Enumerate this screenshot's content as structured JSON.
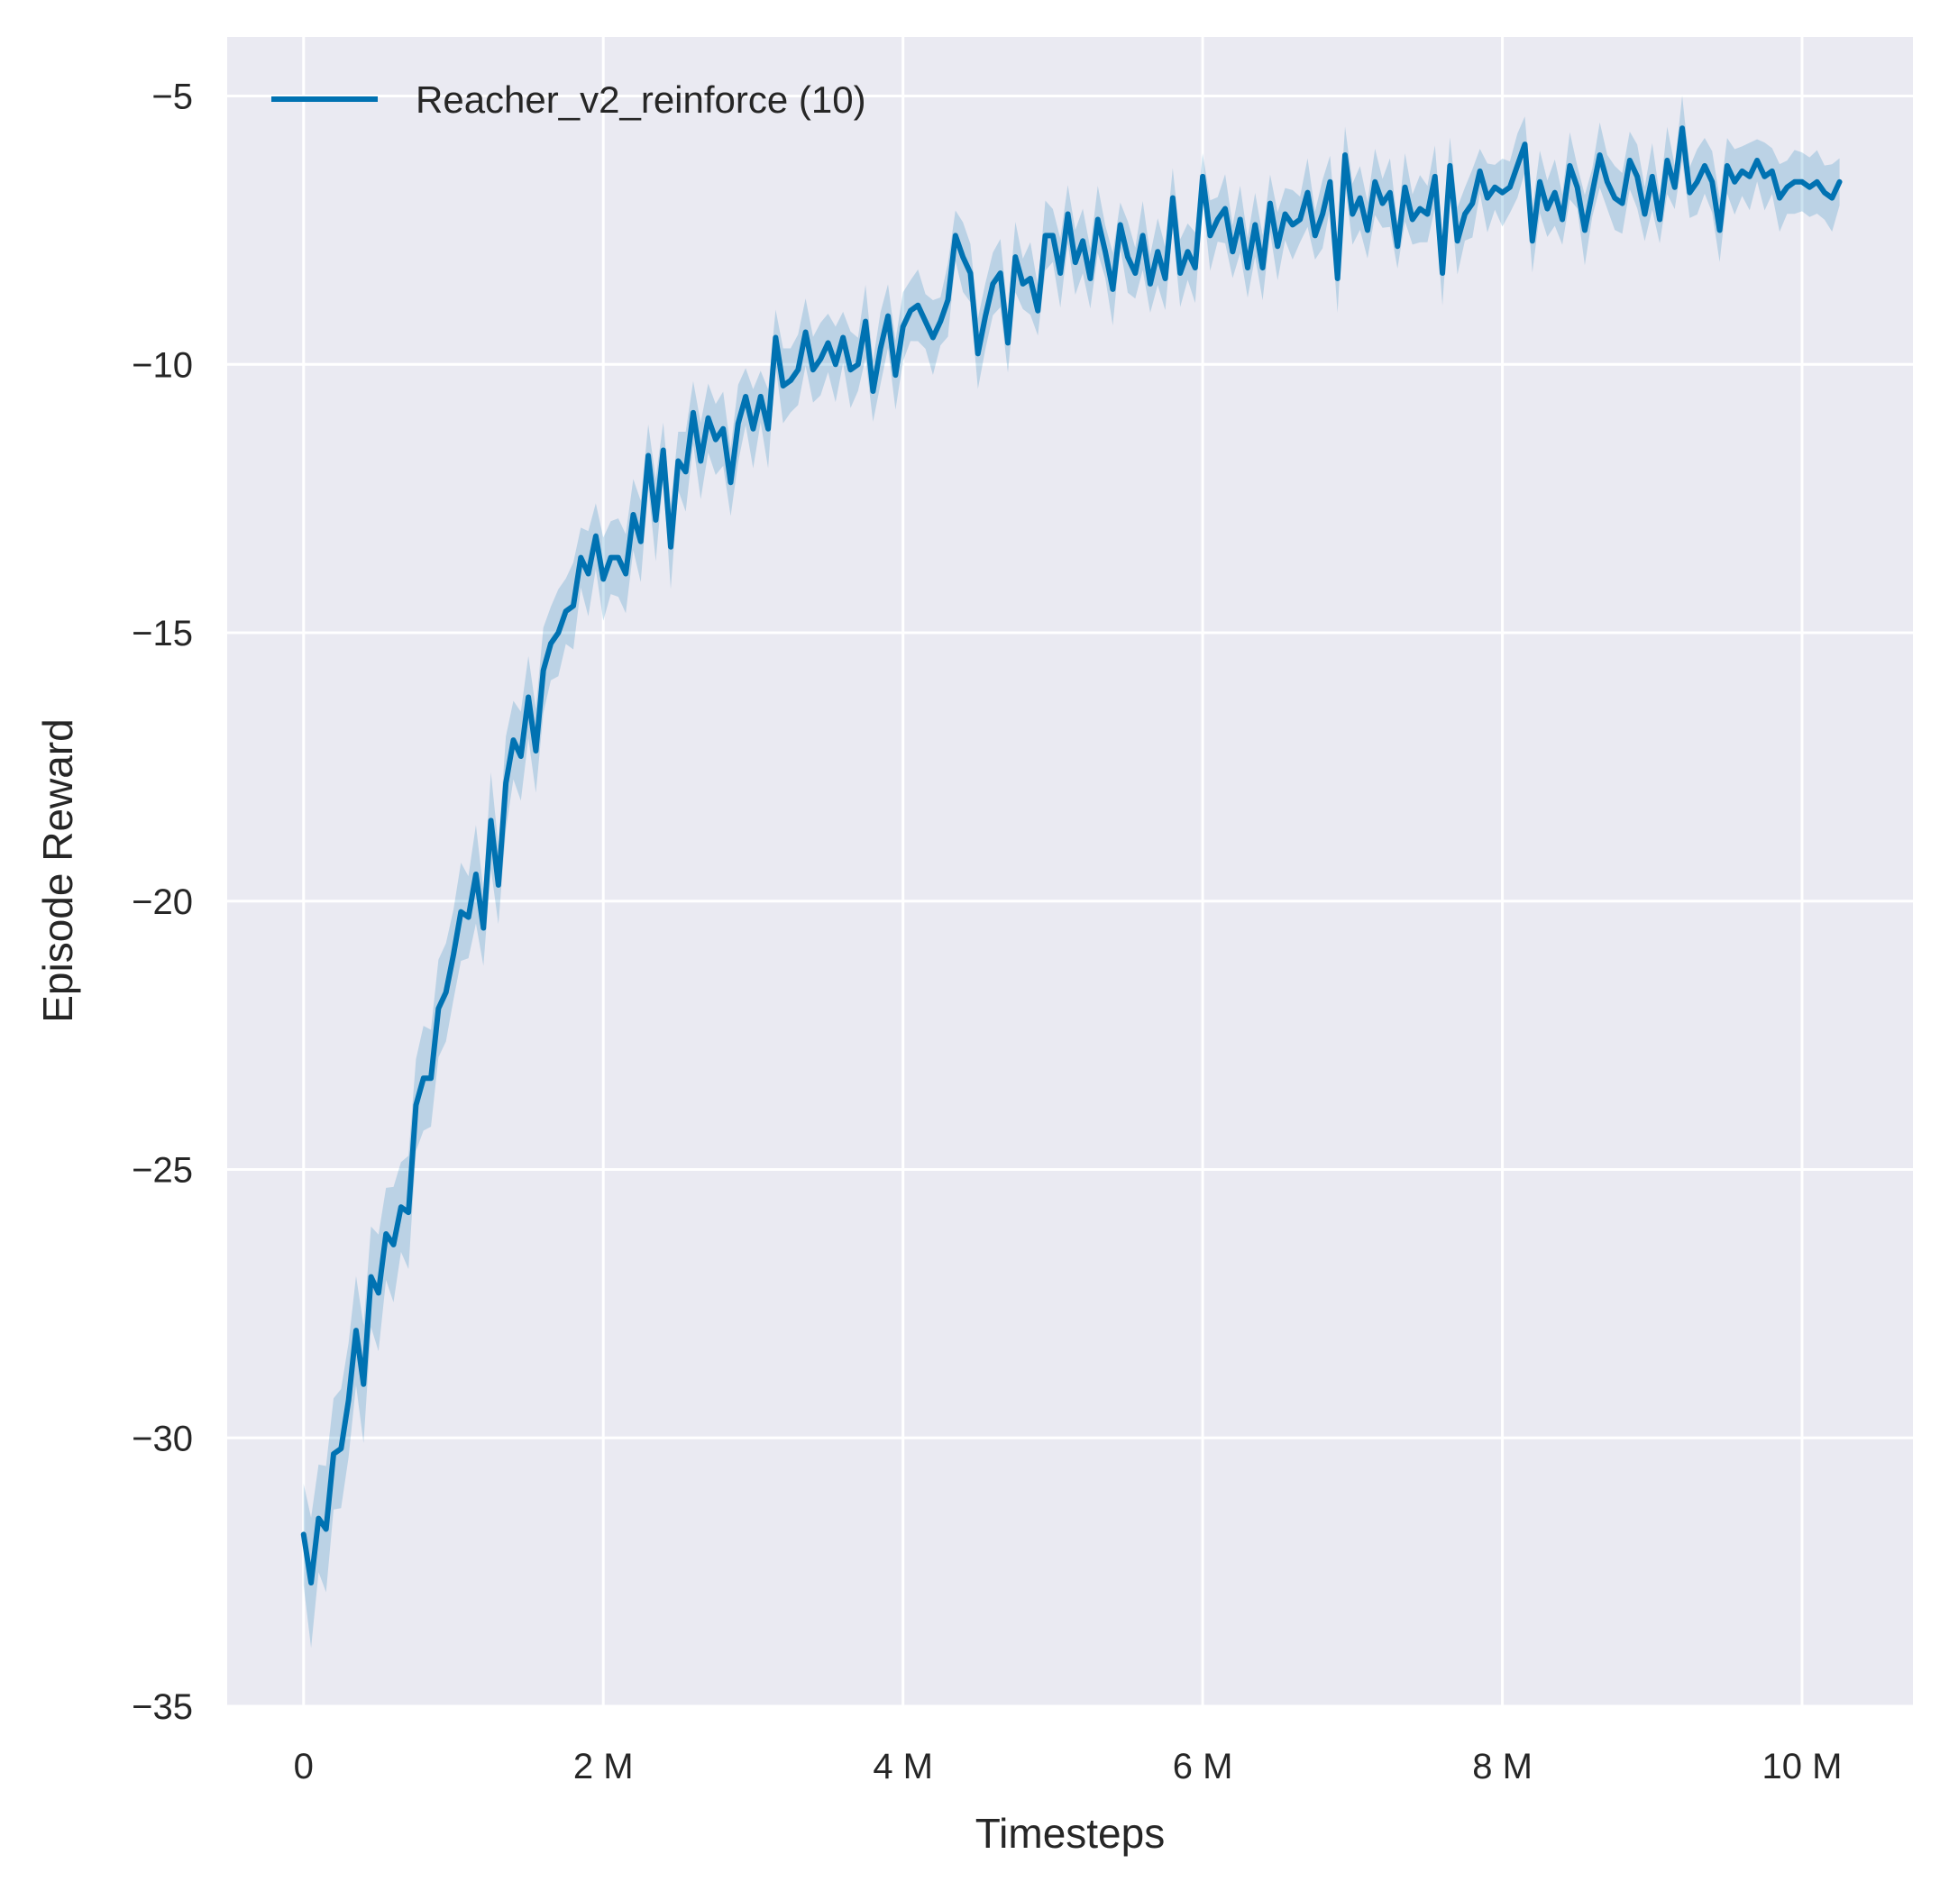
{
  "chart_data": {
    "type": "line",
    "title": "",
    "xlabel": "Timesteps",
    "ylabel": "Episode Reward",
    "xlim": [
      -510000,
      10740000
    ],
    "ylim": [
      -35,
      -3.9
    ],
    "grid": true,
    "legend_placement": "top-left",
    "background_color": "#eaeaf2",
    "grid_color": "#ffffff",
    "xticks": [
      0,
      2000000,
      4000000,
      6000000,
      8000000,
      10000000
    ],
    "xtick_labels": [
      "0",
      "2 M",
      "4 M",
      "6 M",
      "8 M",
      "10 M"
    ],
    "yticks": [
      -35,
      -30,
      -25,
      -20,
      -15,
      -10,
      -5
    ],
    "ytick_labels": [
      "−35",
      "−30",
      "−25",
      "−20",
      "−15",
      "−10",
      "−5"
    ],
    "shaded_confidence_band": true,
    "series": [
      {
        "name": "Reacher_v2_reinforce (10)",
        "color": "#0072b2",
        "x_step": 50000,
        "values": [
          -31.8,
          -32.7,
          -31.5,
          -31.7,
          -30.3,
          -30.2,
          -29.3,
          -28,
          -29,
          -27,
          -27.3,
          -26.2,
          -26.4,
          -25.7,
          -25.8,
          -23.8,
          -23.3,
          -23.3,
          -22,
          -21.7,
          -21,
          -20.2,
          -20.3,
          -19.5,
          -20.5,
          -18.5,
          -19.7,
          -17.8,
          -17,
          -17.3,
          -16.2,
          -17.2,
          -15.7,
          -15.2,
          -15,
          -14.6,
          -14.5,
          -13.6,
          -13.9,
          -13.2,
          -14,
          -13.6,
          -13.6,
          -13.9,
          -12.8,
          -13.3,
          -11.7,
          -12.9,
          -11.6,
          -13.4,
          -11.8,
          -12,
          -10.9,
          -11.8,
          -11,
          -11.4,
          -11.2,
          -12.2,
          -11.1,
          -10.6,
          -11.2,
          -10.6,
          -11.2,
          -9.5,
          -10.4,
          -10.3,
          -10.1,
          -9.4,
          -10.1,
          -9.9,
          -9.6,
          -10,
          -9.5,
          -10.1,
          -10,
          -9.2,
          -10.5,
          -9.7,
          -9.1,
          -10.2,
          -9.3,
          -9,
          -8.9,
          -9.2,
          -9.5,
          -9.2,
          -8.8,
          -7.6,
          -8,
          -8.3,
          -9.8,
          -9.1,
          -8.5,
          -8.3,
          -9.6,
          -8,
          -8.5,
          -8.4,
          -9,
          -7.6,
          -7.6,
          -8.3,
          -7.2,
          -8.1,
          -7.7,
          -8.4,
          -7.3,
          -7.9,
          -8.6,
          -7.4,
          -8,
          -8.3,
          -7.6,
          -8.5,
          -7.9,
          -8.4,
          -6.9,
          -8.3,
          -7.9,
          -8.2,
          -6.5,
          -7.6,
          -7.3,
          -7.1,
          -7.9,
          -7.3,
          -8.2,
          -7.4,
          -8.2,
          -7,
          -7.8,
          -7.2,
          -7.4,
          -7.3,
          -6.8,
          -7.6,
          -7.2,
          -6.6,
          -8.4,
          -6.1,
          -7.2,
          -6.9,
          -7.5,
          -6.6,
          -7,
          -6.8,
          -7.8,
          -6.7,
          -7.3,
          -7.1,
          -7.2,
          -6.5,
          -8.3,
          -6.3,
          -7.7,
          -7.2,
          -7,
          -6.4,
          -6.9,
          -6.7,
          -6.8,
          -6.7,
          -6.3,
          -5.9,
          -7.7,
          -6.6,
          -7.1,
          -6.8,
          -7.3,
          -6.3,
          -6.7,
          -7.5,
          -6.8,
          -6.1,
          -6.6,
          -6.9,
          -7,
          -6.2,
          -6.5,
          -7.2,
          -6.5,
          -7.3,
          -6.2,
          -6.7,
          -5.6,
          -6.8,
          -6.6,
          -6.3,
          -6.6,
          -7.5,
          -6.3,
          -6.6,
          -6.4,
          -6.5,
          -6.2,
          -6.5,
          -6.4,
          -6.9,
          -6.7,
          -6.6,
          -6.6,
          -6.7,
          -6.6,
          -6.8,
          -6.9,
          -6.6
        ]
      }
    ]
  }
}
